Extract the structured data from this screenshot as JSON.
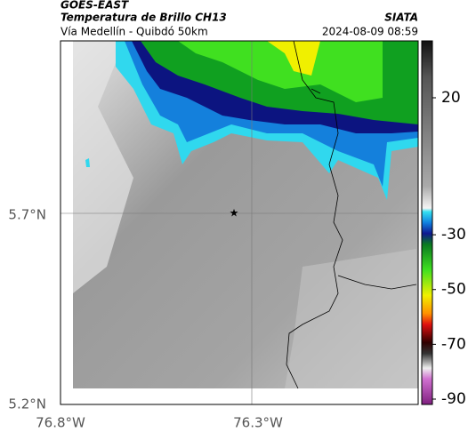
{
  "header": {
    "product": "GOES-EAST",
    "title": "Temperatura de Brillo CH13",
    "source": "SIATA",
    "subtitle": "Vía Medellín - Quibdó 50km",
    "timestamp": "2024-08-09 08:59"
  },
  "axes": {
    "y_labels": [
      "5.7°N",
      "5.2°N"
    ],
    "x_labels": [
      "76.8°W",
      "76.3°W"
    ]
  },
  "colorbar": {
    "ticks": [
      20,
      -30,
      -50,
      -70,
      -90
    ]
  }
}
